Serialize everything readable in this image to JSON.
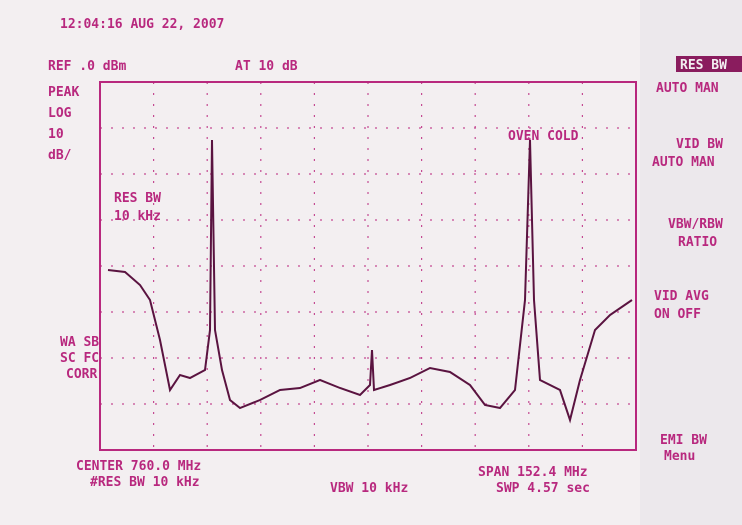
{
  "header": {
    "timestamp": "12:04:16 AUG 22, 2007",
    "ref": "REF .0 dBm",
    "atten": "AT 10 dB"
  },
  "left_labels": {
    "detector": "PEAK",
    "scale": "LOG",
    "scale_value": "10",
    "scale_unit": "dB/",
    "corrections": [
      "WA SB",
      "SC FC",
      "CORR"
    ]
  },
  "screen": {
    "res_bw_label": "RES BW",
    "res_bw_value": "10 kHz",
    "status": "OVEN COLD"
  },
  "softkeys": {
    "top_highlight": "RES BW",
    "res_bw": "AUTO MAN",
    "vid_bw": "VID BW",
    "vid_bw_mode": "AUTO MAN",
    "vbw_rbw": "VBW/RBW",
    "ratio": "RATIO",
    "vid_avg": "VID AVG",
    "vid_avg_mode": "ON OFF",
    "emi_bw": "EMI BW",
    "menu": "Menu"
  },
  "footer": {
    "center": "CENTER 760.0 MHz",
    "res_bw": "#RES BW 10 kHz",
    "vbw": "VBW 10 kHz",
    "span": "SPAN 152.4 MHz",
    "sweep": "SWP 4.57 sec"
  }
}
